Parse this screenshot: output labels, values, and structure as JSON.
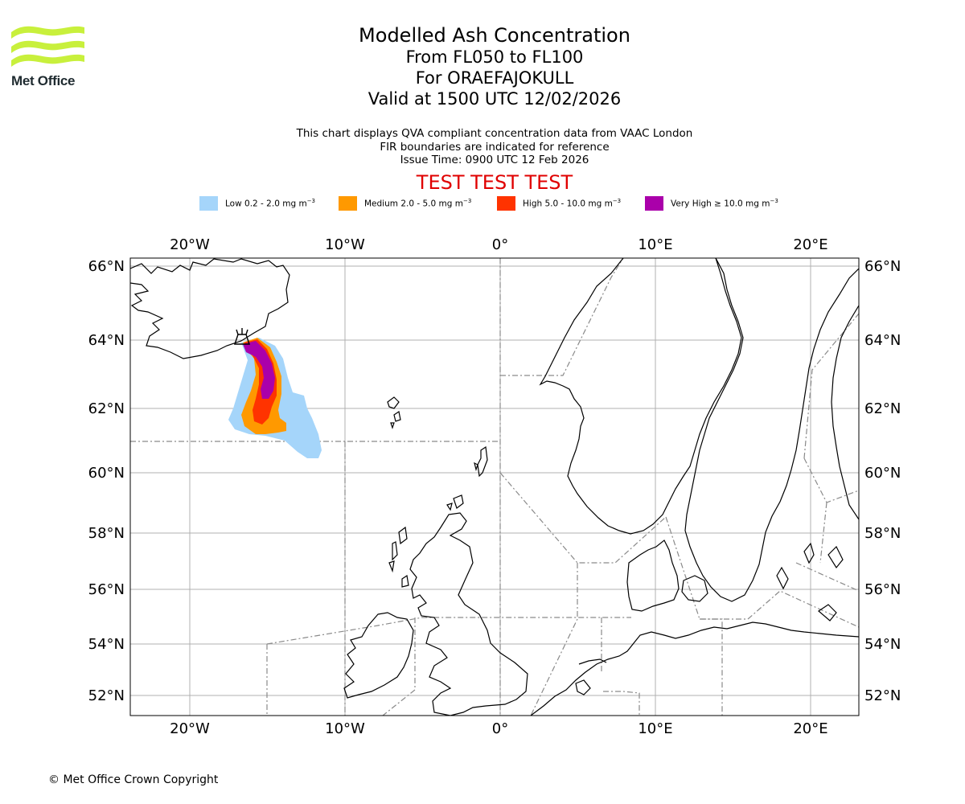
{
  "header": {
    "logo_text": "Met Office",
    "title": "Modelled Ash Concentration",
    "level_range": "From FL050 to FL100",
    "volcano": "For ORAEFAJOKULL",
    "valid_time": "Valid at 1500 UTC 12/02/2026",
    "note_line1": "This chart displays QVA compliant concentration data from VAAC London",
    "note_line2": "FIR boundaries are indicated for reference",
    "issue_time": "Issue Time: 0900 UTC 12 Feb 2026",
    "test_banner": "TEST TEST TEST"
  },
  "legend": [
    {
      "label": "Low 0.2 - 2.0 mg m",
      "color": "#a5d5fa"
    },
    {
      "label": "Medium 2.0 - 5.0 mg m",
      "color": "#ff9900"
    },
    {
      "label": "High 5.0 - 10.0 mg m",
      "color": "#ff3300"
    },
    {
      "label": "Very High ≥ 10.0 mg m",
      "color": "#aa00aa"
    }
  ],
  "legend_unit_sup": "−3",
  "map": {
    "lon_ticks": [
      "20°W",
      "10°W",
      "0°",
      "10°E",
      "20°E"
    ],
    "lat_ticks": [
      "66°N",
      "64°N",
      "62°N",
      "60°N",
      "58°N",
      "56°N",
      "54°N",
      "52°N"
    ],
    "extent": {
      "lon_min": -23.8,
      "lon_max": 23.2,
      "lat_min": 51.4,
      "lat_max": 66.3
    },
    "volcano_marker": {
      "lon": -16.65,
      "lat": 64.0
    }
  },
  "footer": {
    "copyright": "© Met Office Crown Copyright"
  }
}
